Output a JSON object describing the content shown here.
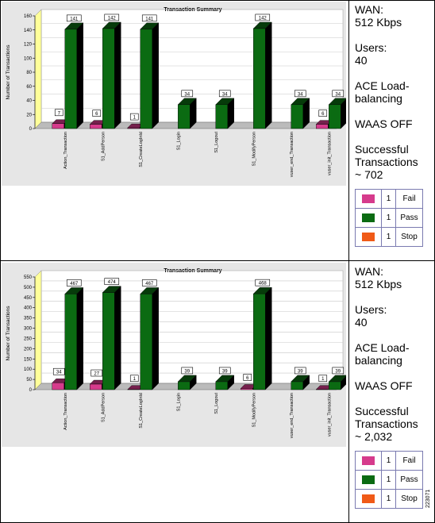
{
  "figure_id": "223071",
  "panels": [
    {
      "sidebar": {
        "wan_label": "WAN:",
        "wan_value": "512 Kbps",
        "users_label": "Users:",
        "users_value": "40",
        "ace_line1": "ACE Load-",
        "ace_line2": "balancing",
        "waas": "WAAS OFF",
        "success_line1": "Successful",
        "success_line2": "Transactions",
        "success_line3": "~ 702"
      },
      "legend": [
        {
          "color": "#d63b8c",
          "count": "1",
          "label": "Fail"
        },
        {
          "color": "#0b6b12",
          "count": "1",
          "label": "Pass"
        },
        {
          "color": "#f05a17",
          "count": "1",
          "label": "Stop"
        }
      ]
    },
    {
      "sidebar": {
        "wan_label": "WAN:",
        "wan_value": "512 Kbps",
        "users_label": "Users:",
        "users_value": "40",
        "ace_line1": "ACE Load-",
        "ace_line2": "balancing",
        "waas": "WAAS OFF",
        "success_line1": "Successful",
        "success_line2": "Transactions",
        "success_line3": "~ 2,032"
      },
      "legend": [
        {
          "color": "#d63b8c",
          "count": "1",
          "label": "Fail"
        },
        {
          "color": "#0b6b12",
          "count": "1",
          "label": "Pass"
        },
        {
          "color": "#f05a17",
          "count": "1",
          "label": "Stop"
        }
      ]
    }
  ],
  "chart_data": [
    {
      "type": "bar",
      "title": "Transaction Summary",
      "ylabel": "Number of Transactions",
      "xlabel": "",
      "ylim": [
        0,
        160
      ],
      "yticks": [
        0,
        20,
        40,
        60,
        80,
        100,
        120,
        140,
        160
      ],
      "grid": true,
      "categories": [
        "Action_Transaction",
        "S1_AddPerson",
        "S1_CreateLogInId",
        "S1_Login",
        "S1_Logout",
        "S1_ModifyPerson",
        "vuser_end_Transaction",
        "vuser_init_Transaction"
      ],
      "series": [
        {
          "name": "Fail",
          "color": "#d63b8c",
          "values": [
            7,
            6,
            1,
            0,
            0,
            0,
            0,
            6
          ],
          "labels": [
            "7",
            "6",
            "1",
            null,
            null,
            null,
            null,
            "6"
          ]
        },
        {
          "name": "Pass",
          "color": "#0b6b12",
          "values": [
            141,
            142,
            141,
            34,
            34,
            142,
            34,
            34
          ],
          "labels": [
            "141",
            "142",
            "141",
            "34",
            "34",
            "142",
            "34",
            "34"
          ]
        }
      ]
    },
    {
      "type": "bar",
      "title": "Transaction Summary",
      "ylabel": "Number of Transactions",
      "xlabel": "",
      "ylim": [
        0,
        550
      ],
      "yticks": [
        0,
        50,
        100,
        150,
        200,
        250,
        300,
        350,
        400,
        450,
        500,
        550
      ],
      "grid": true,
      "categories": [
        "Action_Transaction",
        "S1_AddPerson",
        "S1_CreateLogInId",
        "S1_Login",
        "S1_Logout",
        "S1_ModifyPerson",
        "vuser_end_Transaction",
        "vuser_init_Transaction"
      ],
      "series": [
        {
          "name": "Fail",
          "color": "#d63b8c",
          "values": [
            34,
            27,
            1,
            0,
            0,
            6,
            0,
            1
          ],
          "labels": [
            "34",
            "27",
            "1",
            null,
            null,
            "6",
            null,
            "1"
          ]
        },
        {
          "name": "Pass",
          "color": "#0b6b12",
          "values": [
            467,
            474,
            467,
            39,
            39,
            468,
            39,
            39
          ],
          "labels": [
            "467",
            "474",
            "467",
            "39",
            "39",
            "468",
            "39",
            "39"
          ]
        }
      ]
    }
  ]
}
